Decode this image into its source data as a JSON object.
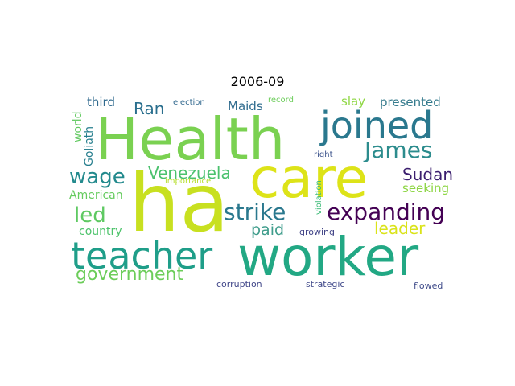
{
  "title": "2006-09",
  "words": [
    {
      "id": "ha",
      "text": "ha",
      "color": "#c8e020"
    },
    {
      "id": "health",
      "text": "Health",
      "color": "#7ad151"
    },
    {
      "id": "care",
      "text": "care",
      "color": "#dde318"
    },
    {
      "id": "worker",
      "text": "worker",
      "color": "#22a884"
    },
    {
      "id": "joined",
      "text": "joined",
      "color": "#2a788e"
    },
    {
      "id": "teacher",
      "text": "teacher",
      "color": "#1f9e89"
    },
    {
      "id": "expanding",
      "text": "expanding",
      "color": "#440154"
    },
    {
      "id": "james",
      "text": "James",
      "color": "#2c8c8d"
    },
    {
      "id": "strike",
      "text": "strike",
      "color": "#2a788e"
    },
    {
      "id": "wage",
      "text": "wage",
      "color": "#238a8d"
    },
    {
      "id": "led",
      "text": "led",
      "color": "#5ec962"
    },
    {
      "id": "government",
      "text": "government",
      "color": "#6ccd5a"
    },
    {
      "id": "venezuela",
      "text": "Venezuela",
      "color": "#4ac16d"
    },
    {
      "id": "sudan",
      "text": "Sudan",
      "color": "#3b1e6e"
    },
    {
      "id": "leader",
      "text": "leader",
      "color": "#dae319"
    },
    {
      "id": "paid",
      "text": "paid",
      "color": "#3e9c8b"
    },
    {
      "id": "ran",
      "text": "Ran",
      "color": "#2a6f8e"
    },
    {
      "id": "third",
      "text": "third",
      "color": "#306a8e"
    },
    {
      "id": "maids",
      "text": "Maids",
      "color": "#2e6b8e"
    },
    {
      "id": "slay",
      "text": "slay",
      "color": "#8fd744"
    },
    {
      "id": "presented",
      "text": "presented",
      "color": "#357b8d"
    },
    {
      "id": "seeking",
      "text": "seeking",
      "color": "#8ed645"
    },
    {
      "id": "american",
      "text": "American",
      "color": "#65cb5e"
    },
    {
      "id": "country",
      "text": "country",
      "color": "#4dc36b"
    },
    {
      "id": "world",
      "text": "world",
      "color": "#61c960"
    },
    {
      "id": "goliath",
      "text": "Goliath",
      "color": "#277f8e"
    },
    {
      "id": "election",
      "text": "election",
      "color": "#31688e"
    },
    {
      "id": "record",
      "text": "record",
      "color": "#6ccd5a"
    },
    {
      "id": "importance",
      "text": "importance",
      "color": "#b5de2b"
    },
    {
      "id": "violation",
      "text": "violation",
      "color": "#3aba76"
    },
    {
      "id": "right",
      "text": "right",
      "color": "#3b528b"
    },
    {
      "id": "growing",
      "text": "growing",
      "color": "#414487"
    },
    {
      "id": "corruption",
      "text": "corruption",
      "color": "#404688"
    },
    {
      "id": "strategic",
      "text": "strategic",
      "color": "#3f4889"
    },
    {
      "id": "flowed",
      "text": "flowed",
      "color": "#3e4a89"
    }
  ]
}
